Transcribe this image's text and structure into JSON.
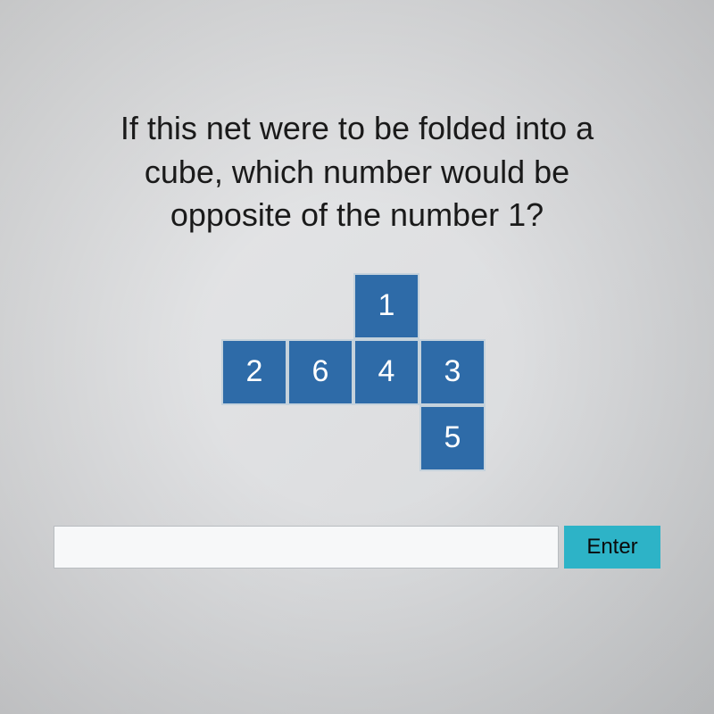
{
  "question": {
    "line1": "If this net were to be folded into a",
    "line2": "cube, which number would be",
    "line3": "opposite of the number 1?",
    "color": "#1a1a1a",
    "fontsize": 36
  },
  "net": {
    "cell_size": 74,
    "cell_color": "#2e6ba8",
    "border_color": "#c5d2dc",
    "text_color": "#ffffff",
    "cells": [
      {
        "label": "1",
        "row": 0,
        "col": 2
      },
      {
        "label": "2",
        "row": 1,
        "col": 0
      },
      {
        "label": "6",
        "row": 1,
        "col": 1
      },
      {
        "label": "4",
        "row": 1,
        "col": 2
      },
      {
        "label": "3",
        "row": 1,
        "col": 3
      },
      {
        "label": "5",
        "row": 2,
        "col": 3
      }
    ]
  },
  "answer": {
    "value": "",
    "placeholder": ""
  },
  "enter_button": {
    "label": "Enter",
    "bg_color": "#2db3c7",
    "text_color": "#0a0a0a"
  },
  "background": {
    "base_color": "#e3e5e7"
  }
}
